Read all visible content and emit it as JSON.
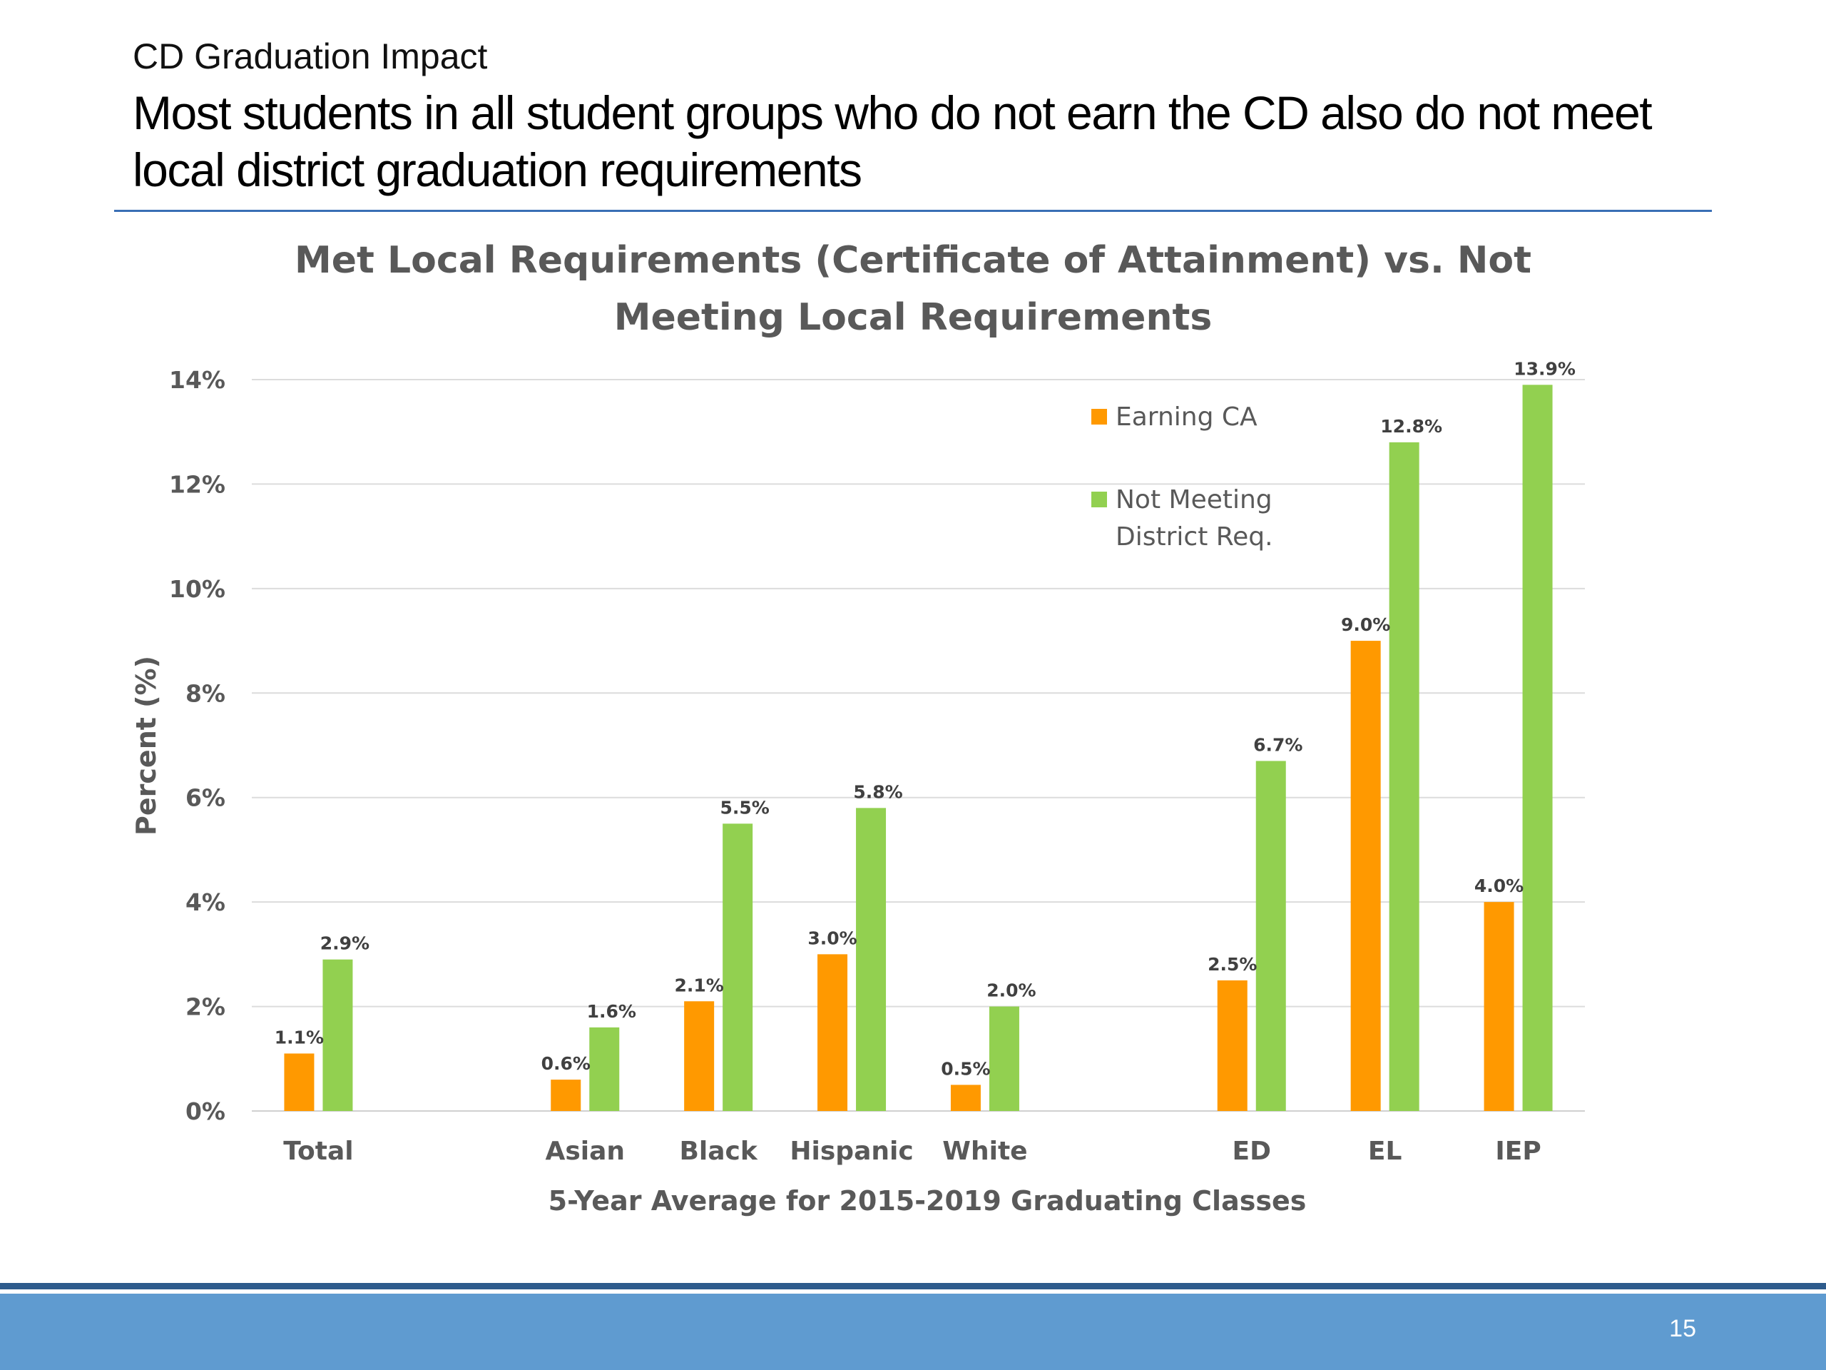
{
  "slide": {
    "kicker": "CD Graduation Impact",
    "headline": "Most students in all student groups who do not earn the CD also do not meet local district graduation requirements",
    "page_number": "15"
  },
  "colors": {
    "earning_ca": "#ff9900",
    "not_meeting": "#92d050",
    "rule": "#3a6fb5",
    "footer_band": "#5f9bd0"
  },
  "chart_data": {
    "type": "bar",
    "title_lines": [
      "Met Local Requirements (Certificate of Attainment) vs. Not",
      "Meeting Local Requirements"
    ],
    "xlabel": "5-Year Average for 2015-2019 Graduating Classes",
    "ylabel": "Percent (%)",
    "ylim": [
      0,
      14
    ],
    "yticks": [
      "0%",
      "2%",
      "4%",
      "6%",
      "8%",
      "10%",
      "12%",
      "14%"
    ],
    "grid": true,
    "legend_position": "top-right",
    "categories": [
      "Total",
      "",
      "Asian",
      "Black",
      "Hispanic",
      "White",
      "",
      "ED",
      "EL",
      "IEP"
    ],
    "series": [
      {
        "name": "Earning CA",
        "values": [
          1.1,
          null,
          0.6,
          2.1,
          3.0,
          0.5,
          null,
          2.5,
          9.0,
          4.0
        ],
        "labels": [
          "1.1%",
          "",
          "0.6%",
          "2.1%",
          "3.0%",
          "0.5%",
          "",
          "2.5%",
          "9.0%",
          "4.0%"
        ]
      },
      {
        "name": "Not Meeting District Req.",
        "name_lines": [
          "Not Meeting",
          "District Req."
        ],
        "values": [
          2.9,
          null,
          1.6,
          5.5,
          5.8,
          2.0,
          null,
          6.7,
          12.8,
          13.9
        ],
        "labels": [
          "2.9%",
          "",
          "1.6%",
          "5.5%",
          "5.8%",
          "2.0%",
          "",
          "6.7%",
          "12.8%",
          "13.9%"
        ]
      }
    ]
  }
}
